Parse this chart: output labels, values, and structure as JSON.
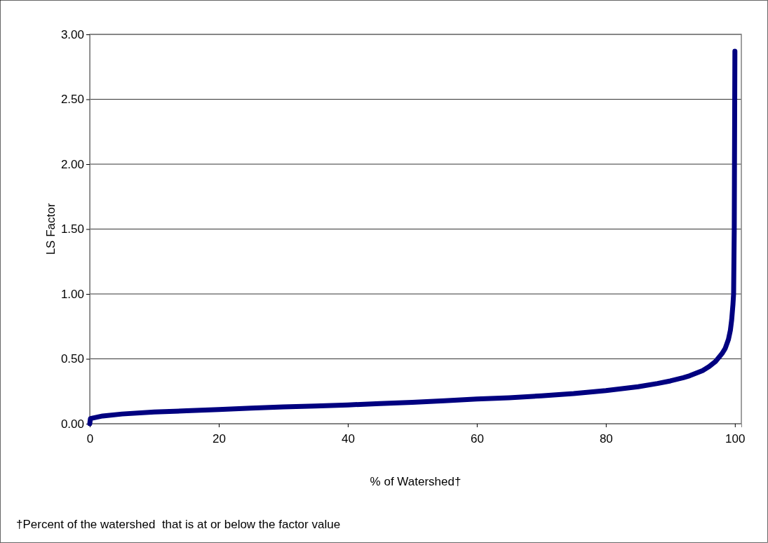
{
  "chart_data": {
    "type": "line",
    "xlabel": "% of Watershed†",
    "ylabel": "LS Factor",
    "annotations": [
      "†Percent of the watershed  that is at or below the factor value"
    ],
    "series": [
      {
        "color": "#000080",
        "x": [
          0,
          0.1,
          2,
          5,
          10,
          15,
          20,
          25,
          30,
          35,
          40,
          45,
          50,
          55,
          60,
          65,
          70,
          75,
          80,
          85,
          88,
          90,
          92,
          93,
          95,
          96,
          97,
          98,
          98.5,
          99,
          99.3,
          99.5,
          99.7,
          99.8,
          99.9,
          100
        ],
        "values": [
          0.0,
          0.04,
          0.06,
          0.075,
          0.09,
          0.1,
          0.11,
          0.12,
          0.13,
          0.137,
          0.145,
          0.155,
          0.165,
          0.177,
          0.19,
          0.2,
          0.215,
          0.232,
          0.255,
          0.285,
          0.31,
          0.33,
          0.355,
          0.37,
          0.41,
          0.44,
          0.48,
          0.54,
          0.58,
          0.65,
          0.72,
          0.8,
          0.92,
          1.0,
          1.5,
          2.87
        ]
      }
    ],
    "xlim": [
      0,
      101
    ],
    "xticks": [
      0,
      20,
      40,
      60,
      80,
      100
    ],
    "ylim": [
      0,
      3
    ],
    "yticks": [
      {
        "value": 0,
        "label": "0.00"
      },
      {
        "value": 0.5,
        "label": "0.50"
      },
      {
        "value": 1,
        "label": "1.00"
      },
      {
        "value": 1.5,
        "label": "1.50"
      },
      {
        "value": 2,
        "label": "2.00"
      },
      {
        "value": 2.5,
        "label": "2.50"
      },
      {
        "value": 3,
        "label": "3.00"
      }
    ],
    "grid": "y",
    "marker": "none",
    "line_style": "solid"
  }
}
